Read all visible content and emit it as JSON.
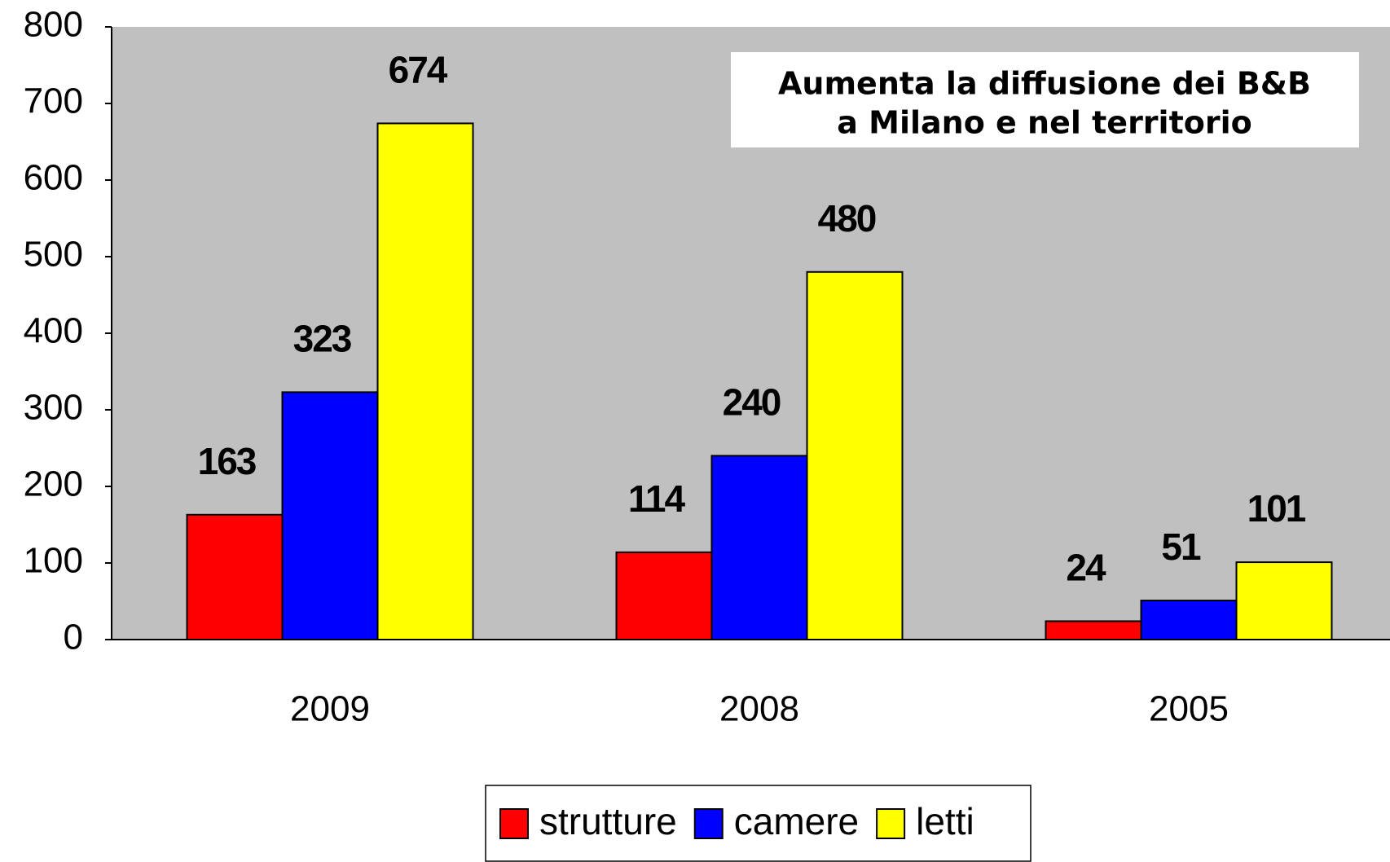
{
  "chart_data": {
    "type": "bar",
    "title": [
      "Aumenta la diffusione dei B&B",
      "a Milano e nel territorio"
    ],
    "categories": [
      "2009",
      "2008",
      "2005"
    ],
    "series": [
      {
        "name": "strutture",
        "color": "#ff0000",
        "values": [
          163,
          114,
          24
        ]
      },
      {
        "name": "camere",
        "color": "#0000ff",
        "values": [
          323,
          240,
          51
        ]
      },
      {
        "name": "letti",
        "color": "#ffff00",
        "values": [
          674,
          480,
          101
        ]
      }
    ],
    "ylim": [
      0,
      800
    ],
    "yticks": [
      0,
      100,
      200,
      300,
      400,
      500,
      600,
      700,
      800
    ],
    "grid": false,
    "legend": "bottom",
    "background": "#c0c0c0"
  }
}
